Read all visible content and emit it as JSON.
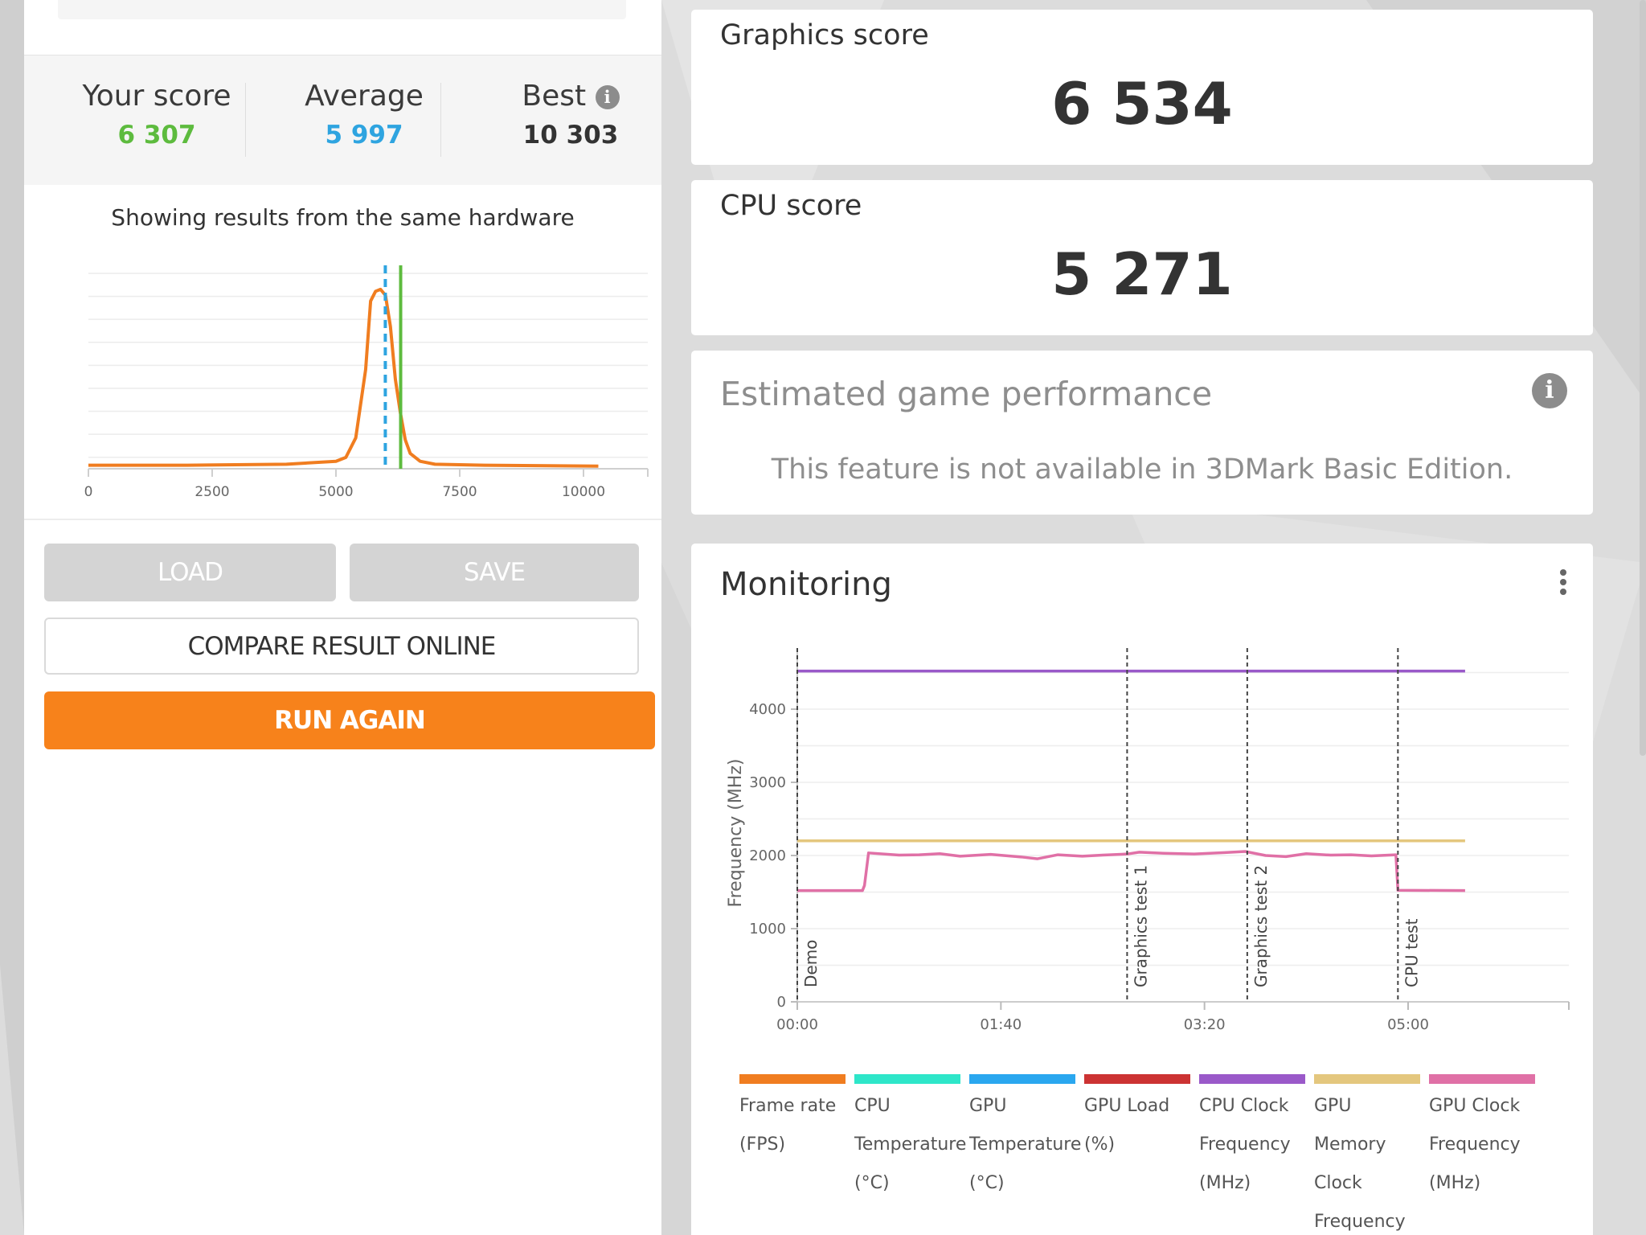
{
  "scores": {
    "your_score_label": "Your score",
    "your_score_value": "6 307",
    "average_label": "Average",
    "average_value": "5 997",
    "best_label": "Best",
    "best_value": "10 303"
  },
  "hardware_note": "Showing results from the same hardware",
  "distribution_chart": {
    "x_ticks": [
      "0",
      "2500",
      "5000",
      "7500",
      "10000"
    ],
    "your_score": 6307,
    "average": 5997,
    "curve": [
      [
        0,
        1
      ],
      [
        2000,
        1
      ],
      [
        4000,
        1.5
      ],
      [
        5000,
        3
      ],
      [
        5200,
        5
      ],
      [
        5400,
        15
      ],
      [
        5600,
        50
      ],
      [
        5700,
        85
      ],
      [
        5800,
        90
      ],
      [
        5900,
        91
      ],
      [
        6000,
        88
      ],
      [
        6100,
        72
      ],
      [
        6200,
        45
      ],
      [
        6300,
        28
      ],
      [
        6400,
        14
      ],
      [
        6500,
        7
      ],
      [
        6700,
        3
      ],
      [
        7000,
        1.5
      ],
      [
        8000,
        1
      ],
      [
        10300,
        0.5
      ]
    ],
    "colors": {
      "curve": "#f07d20",
      "your_score_line": "#5dbb3e",
      "average_line": "#2ea4e0"
    }
  },
  "buttons": {
    "load": "LOAD",
    "save": "SAVE",
    "compare": "COMPARE RESULT ONLINE",
    "run_again": "RUN AGAIN"
  },
  "graphics": {
    "label": "Graphics score",
    "value": "6 534"
  },
  "cpu": {
    "label": "CPU score",
    "value": "5 271"
  },
  "estimated": {
    "title": "Estimated game performance",
    "message": "This feature is not available in 3DMark Basic Edition.",
    "info_icon": "info-icon"
  },
  "monitoring": {
    "title": "Monitoring",
    "menu_icon": "kebab-menu-icon",
    "chart_data": {
      "type": "line",
      "ylabel": "Frequency (MHz)",
      "y_ticks": [
        "0",
        "1000",
        "2000",
        "3000",
        "4000"
      ],
      "ylim": [
        0,
        5000
      ],
      "x_ticks": [
        "00:00",
        "01:40",
        "03:20",
        "05:00"
      ],
      "xlim_seconds": [
        0,
        350
      ],
      "markers": [
        {
          "label": "Demo",
          "t": 0
        },
        {
          "label": "Graphics test 1",
          "t": 162
        },
        {
          "label": "Graphics test 2",
          "t": 221
        },
        {
          "label": "CPU test",
          "t": 295
        }
      ],
      "series": [
        {
          "name": "CPU Clock Frequency (MHz)",
          "color": "#9a59c9",
          "points": [
            [
              0,
              4520
            ],
            [
              328,
              4520
            ]
          ]
        },
        {
          "name": "GPU Memory Clock Frequency (MHz)",
          "color": "#e4c77e",
          "points": [
            [
              0,
              2200
            ],
            [
              328,
              2200
            ]
          ]
        },
        {
          "name": "GPU Clock Frequency (MHz)",
          "color": "#e070a6",
          "points": [
            [
              0,
              1520
            ],
            [
              32,
              1520
            ],
            [
              33,
              1590
            ],
            [
              35,
              2035
            ],
            [
              50,
              2005
            ],
            [
              60,
              2010
            ],
            [
              70,
              2025
            ],
            [
              80,
              1990
            ],
            [
              95,
              2015
            ],
            [
              110,
              1980
            ],
            [
              118,
              1955
            ],
            [
              128,
              2010
            ],
            [
              140,
              1990
            ],
            [
              150,
              2005
            ],
            [
              162,
              2020
            ],
            [
              168,
              2045
            ],
            [
              180,
              2030
            ],
            [
              195,
              2020
            ],
            [
              210,
              2040
            ],
            [
              220,
              2055
            ],
            [
              230,
              2000
            ],
            [
              240,
              1985
            ],
            [
              250,
              2025
            ],
            [
              262,
              2005
            ],
            [
              272,
              2010
            ],
            [
              282,
              1995
            ],
            [
              294,
              2010
            ],
            [
              295,
              1525
            ],
            [
              328,
              1520
            ]
          ]
        }
      ]
    },
    "legend": [
      {
        "label": "Frame rate (FPS)",
        "color": "#f07d20"
      },
      {
        "label": "CPU Temperature (°C)",
        "color": "#2ee6c9"
      },
      {
        "label": "GPU Temperature (°C)",
        "color": "#2aa7ef"
      },
      {
        "label": "GPU Load (%)",
        "color": "#cc3333"
      },
      {
        "label": "CPU Clock Frequency (MHz)",
        "color": "#9a59c9"
      },
      {
        "label": "GPU Memory Clock Frequency (MHz)",
        "color": "#e4c77e"
      },
      {
        "label": "GPU Clock Frequency (MHz)",
        "color": "#e070a6"
      }
    ]
  }
}
